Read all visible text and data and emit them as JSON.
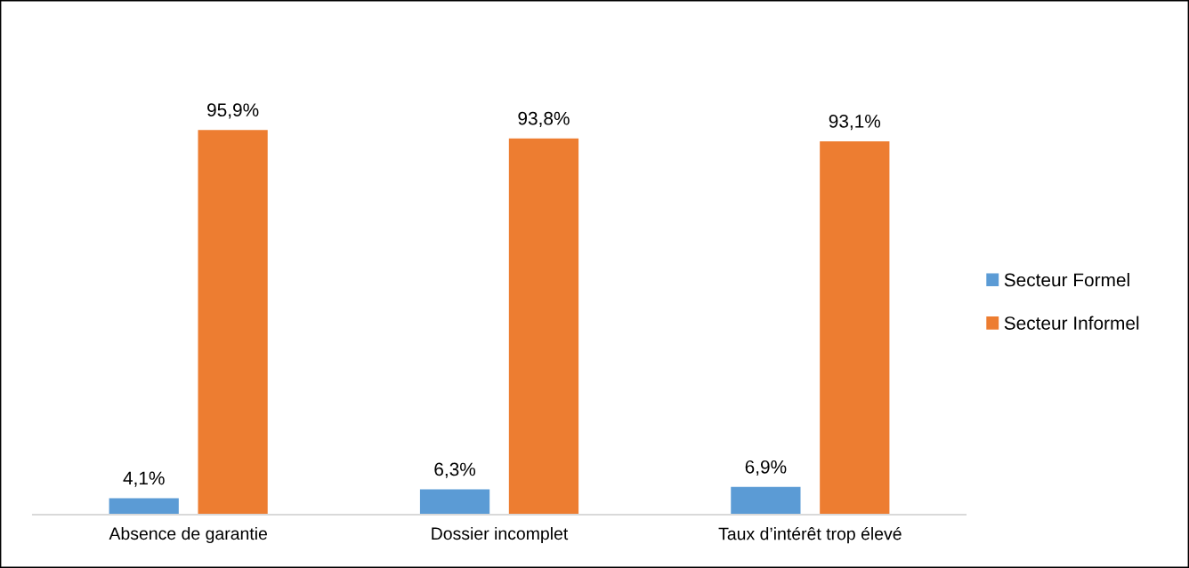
{
  "chart_data": {
    "type": "bar",
    "categories": [
      "Absence de garantie",
      "Dossier incomplet",
      "Taux d’intérêt trop élevé"
    ],
    "series": [
      {
        "name": "Secteur Formel",
        "color": "#5b9bd5",
        "values": [
          4.1,
          6.3,
          6.9
        ],
        "value_labels": [
          "4,1%",
          "6,3%",
          "6,9%"
        ]
      },
      {
        "name": "Secteur Informel",
        "color": "#ed7d31",
        "values": [
          95.9,
          93.8,
          93.1
        ],
        "value_labels": [
          "95,9%",
          "93,8%",
          "93,1%"
        ]
      }
    ],
    "legend": "right",
    "grid": false,
    "tick_labels": "x"
  }
}
